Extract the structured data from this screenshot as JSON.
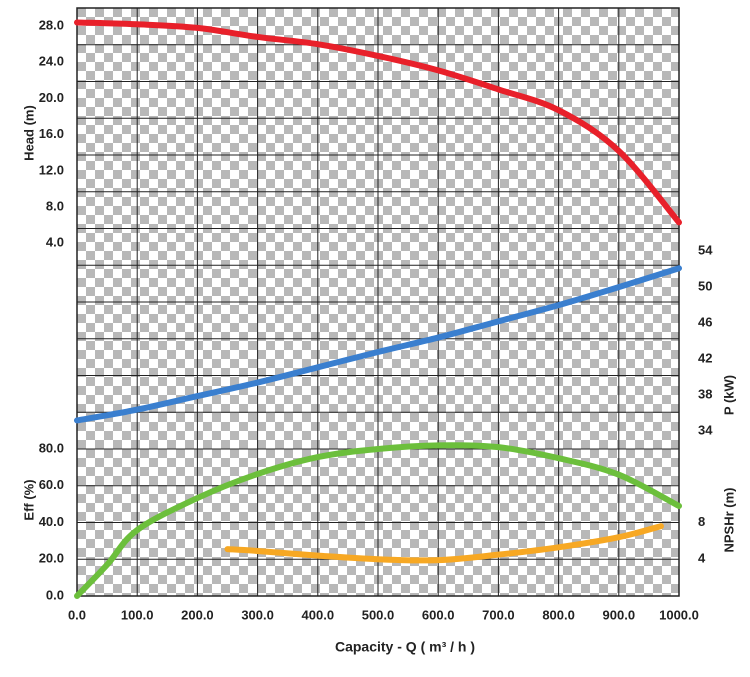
{
  "chart_data": {
    "type": "line",
    "x_label": "Capacity - Q ( m³ / h )",
    "xlim": [
      0,
      1000
    ],
    "xticks": [
      {
        "value": 0,
        "label": "0.0"
      },
      {
        "value": 100,
        "label": "100.0"
      },
      {
        "value": 200,
        "label": "200.0"
      },
      {
        "value": 300,
        "label": "300.0"
      },
      {
        "value": 400,
        "label": "400.0"
      },
      {
        "value": 500,
        "label": "500.0"
      },
      {
        "value": 600,
        "label": "600.0"
      },
      {
        "value": 700,
        "label": "700.0"
      },
      {
        "value": 800,
        "label": "800.0"
      },
      {
        "value": 900,
        "label": "900.0"
      },
      {
        "value": 1000,
        "label": "1000.0"
      }
    ],
    "grid": true,
    "y_axes": [
      {
        "label": "Head (m)",
        "side": "left",
        "ylim": [
          -35,
          30
        ],
        "yticks": [
          {
            "value": 4,
            "label": "4.0"
          },
          {
            "value": 8,
            "label": "8.0"
          },
          {
            "value": 12,
            "label": "12.0"
          },
          {
            "value": 16,
            "label": "16.0"
          },
          {
            "value": 20,
            "label": "20.0"
          },
          {
            "value": 24,
            "label": "24.0"
          },
          {
            "value": 28,
            "label": "28.0"
          }
        ]
      },
      {
        "label": "P (kW)",
        "side": "right",
        "ylim": [
          15.7,
          81
        ],
        "yticks": [
          34,
          38,
          42,
          46,
          50,
          54
        ]
      },
      {
        "label": "Eff (%)",
        "side": "left",
        "ylim": [
          0,
          320
        ],
        "yticks": [
          {
            "value": 0,
            "label": "0.0"
          },
          {
            "value": 20,
            "label": "20.0"
          },
          {
            "value": 40,
            "label": "40.0"
          },
          {
            "value": 60,
            "label": "60.0"
          },
          {
            "value": 80,
            "label": "80.0"
          }
        ]
      },
      {
        "label": "NPSHr (m)",
        "side": "right",
        "ylim": [
          0,
          64
        ],
        "yticks": [
          4,
          8
        ]
      }
    ],
    "series": [
      {
        "axis": 0,
        "color": "#e8202a",
        "x": [
          0,
          100,
          200,
          300,
          400,
          500,
          600,
          700,
          800,
          900,
          1000
        ],
        "values": [
          28.4,
          28.2,
          27.8,
          26.8,
          26.0,
          24.7,
          23.1,
          21.0,
          18.7,
          14.2,
          6.3
        ]
      },
      {
        "axis": 1,
        "color": "#3a7fcf",
        "x": [
          0,
          100,
          200,
          300,
          400,
          500,
          600,
          700,
          800,
          900,
          1000
        ],
        "values": [
          35.2,
          36.4,
          37.9,
          39.4,
          41.1,
          42.8,
          44.4,
          46.2,
          48.0,
          50.0,
          52.1
        ]
      },
      {
        "axis": 2,
        "color": "#6cbf3c",
        "x": [
          0,
          50,
          100,
          200,
          300,
          400,
          500,
          600,
          700,
          800,
          900,
          1000
        ],
        "values": [
          0,
          17,
          35.9,
          53.3,
          66.4,
          75.6,
          80,
          82,
          81,
          75,
          66,
          49
        ]
      },
      {
        "axis": 3,
        "color": "#f7a823",
        "x": [
          250,
          300,
          400,
          500,
          600,
          700,
          800,
          900,
          970
        ],
        "values": [
          5.1,
          4.9,
          4.4,
          4.0,
          3.9,
          4.5,
          5.3,
          6.4,
          7.6
        ]
      }
    ]
  }
}
